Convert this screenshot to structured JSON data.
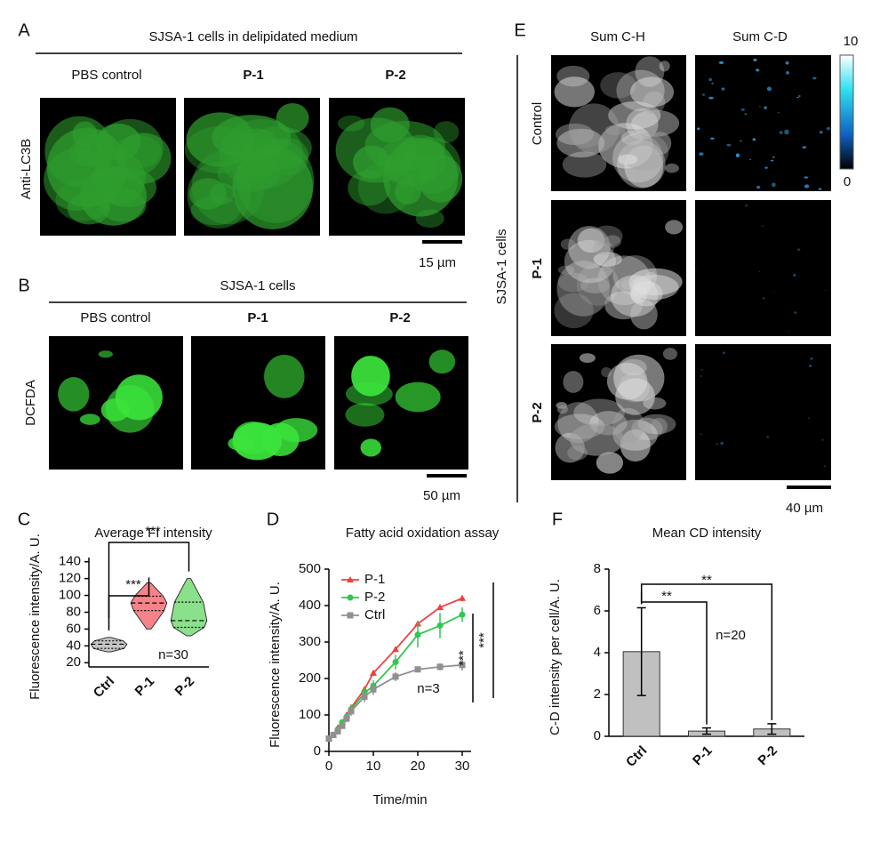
{
  "panels": {
    "A": {
      "label": "A",
      "title": "SJSA-1 cells in delipidated medium",
      "columns": [
        "PBS control",
        "P-1",
        "P-2"
      ],
      "row_label": "Anti-LC3B",
      "scale_bar": "15 µm"
    },
    "B": {
      "label": "B",
      "title": "SJSA-1 cells",
      "columns": [
        "PBS control",
        "P-1",
        "P-2"
      ],
      "row_label": "DCFDA",
      "scale_bar": "50 µm"
    },
    "E": {
      "label": "E",
      "columns": [
        "Sum C-H",
        "Sum C-D"
      ],
      "rows": [
        "Control",
        "P-1",
        "P-2"
      ],
      "group_label": "SJSA-1 cells",
      "colorbar_range": [
        0,
        10
      ],
      "scale_bar": "40 µm"
    }
  },
  "chart_data": [
    {
      "panel": "C",
      "type": "violin",
      "title": "Average FI intensity",
      "ylabel": "Fluorescence intensity/A. U.",
      "categories": [
        "Ctrl",
        "P-1",
        "P-2"
      ],
      "colors": [
        "#9e9e9e",
        "#f0303a",
        "#3dcc3d"
      ],
      "stats": {
        "min": [
          33,
          60,
          52
        ],
        "q1": [
          37,
          82,
          62
        ],
        "median": [
          42,
          91,
          70
        ],
        "q3": [
          46,
          99,
          92
        ],
        "max": [
          50,
          115,
          120
        ]
      },
      "ylim": [
        15,
        145
      ],
      "yticks": [
        20,
        40,
        60,
        80,
        100,
        120,
        140
      ],
      "annotations": [
        "***",
        "***",
        "n=30"
      ]
    },
    {
      "panel": "D",
      "type": "line",
      "title": "Fatty acid oxidation assay",
      "xlabel": "Time/min",
      "ylabel": "Fluorescence intensity/A. U.",
      "x": [
        0,
        1,
        2,
        3,
        4,
        5,
        8,
        10,
        15,
        20,
        25,
        30
      ],
      "series": [
        {
          "name": "P-1",
          "color": "#f04040",
          "marker": "triangle",
          "values": [
            35,
            45,
            65,
            80,
            100,
            120,
            170,
            215,
            280,
            350,
            395,
            420
          ],
          "errors": [
            5,
            5,
            5,
            6,
            6,
            8,
            8,
            8,
            8,
            6,
            8,
            8
          ]
        },
        {
          "name": "P-2",
          "color": "#30c850",
          "marker": "circle",
          "values": [
            35,
            45,
            60,
            80,
            95,
            115,
            160,
            180,
            245,
            320,
            345,
            375
          ],
          "errors": [
            5,
            5,
            6,
            8,
            10,
            12,
            15,
            15,
            20,
            35,
            35,
            20
          ]
        },
        {
          "name": "Ctrl",
          "color": "#909090",
          "marker": "square",
          "values": [
            35,
            45,
            55,
            70,
            90,
            110,
            150,
            170,
            205,
            225,
            232,
            237
          ],
          "errors": [
            5,
            5,
            6,
            8,
            10,
            12,
            15,
            15,
            12,
            8,
            10,
            15
          ]
        }
      ],
      "xlim": [
        0,
        32
      ],
      "xticks": [
        0,
        10,
        20,
        30
      ],
      "ylim": [
        0,
        500
      ],
      "yticks": [
        0,
        100,
        200,
        300,
        400,
        500
      ],
      "legend": "top-left",
      "annotations": [
        "n=3",
        "***",
        "***"
      ]
    },
    {
      "panel": "F",
      "type": "bar",
      "title": "Mean CD intensity",
      "ylabel": "C-D intensity per cell/A. U.",
      "categories": [
        "Ctrl",
        "P-1",
        "P-2"
      ],
      "values": [
        4.05,
        0.25,
        0.35
      ],
      "errors": [
        2.1,
        0.15,
        0.25
      ],
      "color": "#c0c0c0",
      "ylim": [
        0,
        8
      ],
      "yticks": [
        0,
        2,
        4,
        6,
        8
      ],
      "annotations": [
        "**",
        "**",
        "n=20"
      ]
    }
  ]
}
